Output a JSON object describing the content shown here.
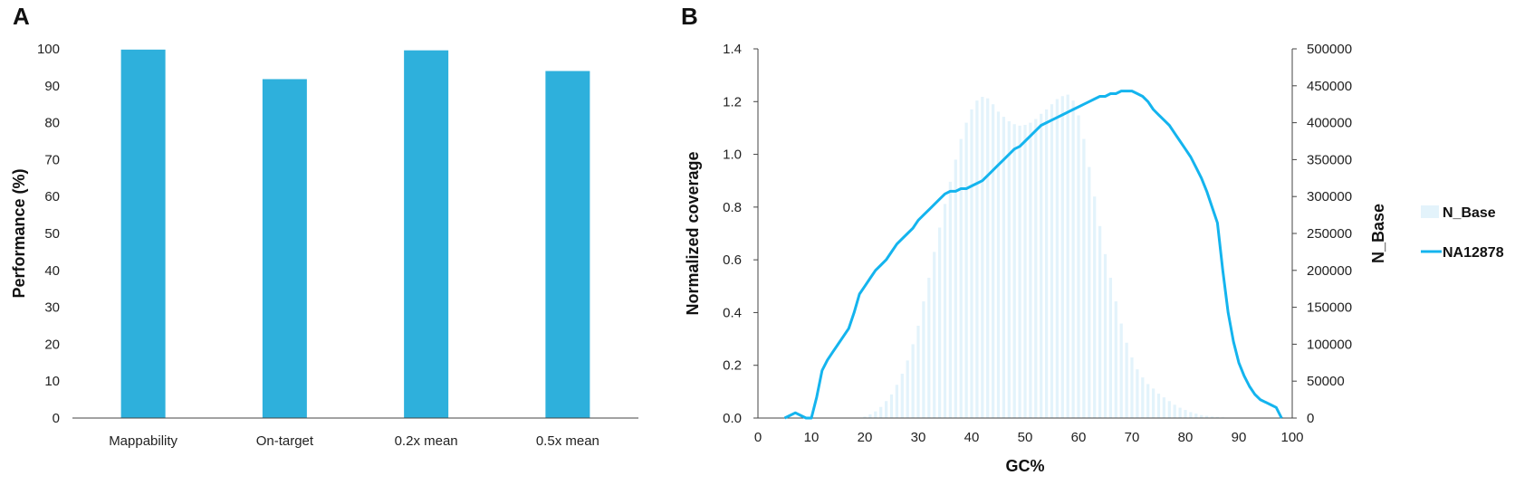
{
  "panels": {
    "a": "A",
    "b": "B"
  },
  "chart_data": [
    {
      "type": "bar",
      "title": "",
      "categories": [
        "Mappability",
        "On-target",
        "0.2x mean",
        "0.5x mean"
      ],
      "values": [
        99.8,
        91.8,
        99.6,
        94.0
      ],
      "xlabel": "",
      "ylabel": "Performance (%)",
      "ylim": [
        0,
        100
      ],
      "yticks": [
        0,
        10,
        20,
        30,
        40,
        50,
        60,
        70,
        80,
        90,
        100
      ],
      "color": "#2eb0dc",
      "grid": false
    },
    {
      "type": "line",
      "title": "",
      "xlabel": "GC%",
      "ylabel": "Normalized coverage",
      "y2label": "N_Base",
      "xlim": [
        0,
        100
      ],
      "ylim": [
        0,
        1.4
      ],
      "y2lim": [
        0,
        500000
      ],
      "xticks": [
        0,
        10,
        20,
        30,
        40,
        50,
        60,
        70,
        80,
        90,
        100
      ],
      "yticks": [
        "0.0",
        "0.2",
        "0.4",
        "0.6",
        "0.8",
        "1.0",
        "1.2",
        "1.4"
      ],
      "y2ticks": [
        "0",
        "50000",
        "100000",
        "150000",
        "200000",
        "250000",
        "300000",
        "350000",
        "400000",
        "450000",
        "500000"
      ],
      "legend_position": "right",
      "series": [
        {
          "name": "N_Base",
          "kind": "bar",
          "axis": "right",
          "color": "#e3f3fb",
          "x": [
            20,
            21,
            22,
            23,
            24,
            25,
            26,
            27,
            28,
            29,
            30,
            31,
            32,
            33,
            34,
            35,
            36,
            37,
            38,
            39,
            40,
            41,
            42,
            43,
            44,
            45,
            46,
            47,
            48,
            49,
            50,
            51,
            52,
            53,
            54,
            55,
            56,
            57,
            58,
            59,
            60,
            61,
            62,
            63,
            64,
            65,
            66,
            67,
            68,
            69,
            70,
            71,
            72,
            73,
            74,
            75,
            76,
            77,
            78,
            79,
            80,
            81,
            82,
            83,
            84,
            85,
            86,
            87,
            88
          ],
          "values": [
            2000,
            5000,
            9000,
            15000,
            23000,
            32000,
            45000,
            60000,
            78000,
            100000,
            125000,
            158000,
            190000,
            225000,
            258000,
            290000,
            320000,
            350000,
            378000,
            400000,
            418000,
            430000,
            435000,
            433000,
            425000,
            415000,
            408000,
            402000,
            398000,
            396000,
            397000,
            400000,
            405000,
            412000,
            418000,
            425000,
            432000,
            436000,
            438000,
            430000,
            410000,
            378000,
            340000,
            300000,
            260000,
            222000,
            190000,
            158000,
            128000,
            102000,
            82000,
            66000,
            55000,
            46000,
            40000,
            33000,
            28000,
            23000,
            18000,
            14000,
            11000,
            8000,
            6000,
            4000,
            3000,
            2000,
            1500,
            1000,
            500
          ]
        },
        {
          "name": "NA12878",
          "kind": "line",
          "axis": "left",
          "color": "#14b4ee",
          "x": [
            5,
            6,
            7,
            8,
            9,
            10,
            11,
            12,
            13,
            14,
            15,
            16,
            17,
            18,
            19,
            20,
            21,
            22,
            23,
            24,
            25,
            26,
            27,
            28,
            29,
            30,
            31,
            32,
            33,
            34,
            35,
            36,
            37,
            38,
            39,
            40,
            41,
            42,
            43,
            44,
            45,
            46,
            47,
            48,
            49,
            50,
            51,
            52,
            53,
            54,
            55,
            56,
            57,
            58,
            59,
            60,
            61,
            62,
            63,
            64,
            65,
            66,
            67,
            68,
            69,
            70,
            71,
            72,
            73,
            74,
            75,
            76,
            77,
            78,
            79,
            80,
            81,
            82,
            83,
            84,
            85,
            86,
            87,
            88,
            89,
            90,
            91,
            92,
            93,
            94,
            95,
            96,
            97,
            98
          ],
          "values": [
            0.0,
            0.01,
            0.02,
            0.01,
            0.0,
            0.0,
            0.08,
            0.18,
            0.22,
            0.25,
            0.28,
            0.31,
            0.34,
            0.4,
            0.47,
            0.5,
            0.53,
            0.56,
            0.58,
            0.6,
            0.63,
            0.66,
            0.68,
            0.7,
            0.72,
            0.75,
            0.77,
            0.79,
            0.81,
            0.83,
            0.85,
            0.86,
            0.86,
            0.87,
            0.87,
            0.88,
            0.89,
            0.9,
            0.92,
            0.94,
            0.96,
            0.98,
            1.0,
            1.02,
            1.03,
            1.05,
            1.07,
            1.09,
            1.11,
            1.12,
            1.13,
            1.14,
            1.15,
            1.16,
            1.17,
            1.18,
            1.19,
            1.2,
            1.21,
            1.22,
            1.22,
            1.23,
            1.23,
            1.24,
            1.24,
            1.24,
            1.23,
            1.22,
            1.2,
            1.17,
            1.15,
            1.13,
            1.11,
            1.08,
            1.05,
            1.02,
            0.99,
            0.95,
            0.91,
            0.86,
            0.8,
            0.74,
            0.56,
            0.4,
            0.29,
            0.21,
            0.16,
            0.12,
            0.09,
            0.07,
            0.06,
            0.05,
            0.04,
            0.0
          ]
        }
      ]
    }
  ]
}
